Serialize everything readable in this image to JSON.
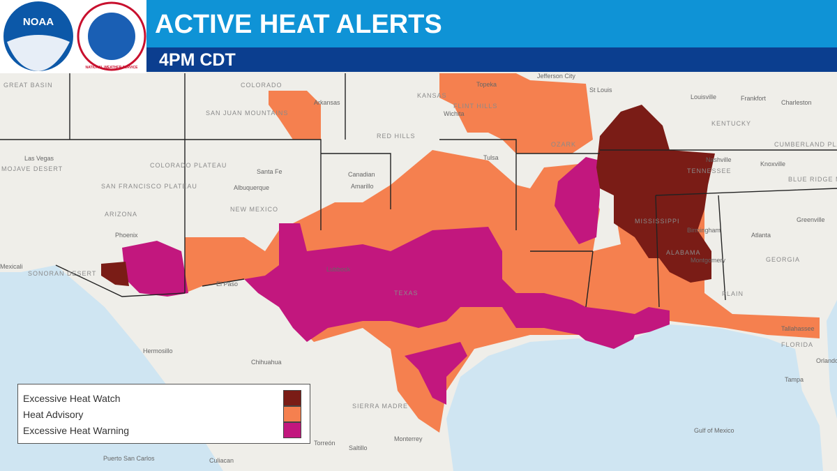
{
  "header": {
    "title": "ACTIVE HEAT ALERTS",
    "subtitle": "4PM CDT",
    "logos": [
      "NOAA",
      "NATIONAL WEATHER SERVICE"
    ]
  },
  "legend": {
    "items": [
      {
        "label": "Excessive Heat Watch",
        "color": "#7a1c16"
      },
      {
        "label": "Heat Advisory",
        "color": "#f5804f"
      },
      {
        "label": "Excessive Heat Warning",
        "color": "#c2177e"
      }
    ]
  },
  "map": {
    "labels": [
      "GREAT BASIN",
      "COLORADO",
      "KANSAS",
      "Topeka",
      "Jefferson City",
      "St Louis",
      "Louisville",
      "Frankfort",
      "Charleston",
      "KENTUCKY",
      "Wichita",
      "FLINT HILLS",
      "OZARK",
      "RED HILLS",
      "Las Vegas",
      "MOJAVE DESERT",
      "COLORADO PLATEAU",
      "SAN JUAN MOUNTAINS",
      "Santa Fe",
      "Albuquerque",
      "NEW MEXICO",
      "Tulsa",
      "Amarillo",
      "Nashville",
      "TENNESSEE",
      "Knoxville",
      "CUMBERLAND PLATEAU",
      "BLUE RIDGE MOUNTAINS",
      "Greenville",
      "Atlanta",
      "GEORGIA",
      "Birmingham",
      "Montgomery",
      "ALABAMA",
      "MISSISSIPPI",
      "Phoenix",
      "ARIZONA",
      "SAN FRANCISCO PLATEAU",
      "SONORAN DESERT",
      "Mexicali",
      "Lubbock",
      "El Paso",
      "TEXAS",
      "Hermosillo",
      "Chihuahua",
      "Torreón",
      "Saltillo",
      "Monterrey",
      "Culiacan",
      "Puerto San Carlos",
      "SIERRA MADRE",
      "Tallahassee",
      "FLORIDA",
      "Tampa",
      "Orlando",
      "Gulf of Mexico",
      "PLAIN",
      "Canadian",
      "Arkansas"
    ]
  }
}
